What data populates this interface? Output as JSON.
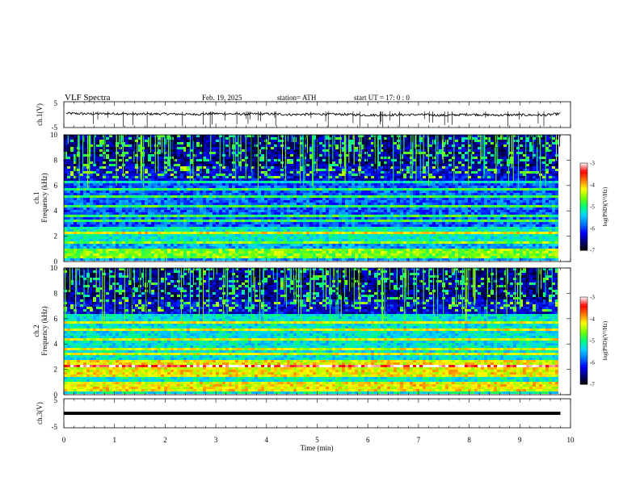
{
  "header": {
    "title": "VLF  Spectra",
    "date": "Feb. 19, 2025",
    "station": "station= ATH",
    "start": "start  UT  =   17: 0  : 0"
  },
  "chart_data": {
    "type": "heatmap",
    "xlabel": "Time  (min)",
    "xlim": [
      0,
      10
    ],
    "xticks": [
      "0",
      "1",
      "2",
      "3",
      "4",
      "5",
      "6",
      "7",
      "8",
      "9",
      "10"
    ],
    "panels": [
      {
        "id": "ch1-voltage",
        "type": "line",
        "ylabel": "ch.1(V)",
        "ylim": [
          -5,
          5
        ],
        "yticks": [
          "5",
          "-5"
        ],
        "series": [
          {
            "x": [
              0.05,
              0.5,
              1.0,
              1.5,
              2.0,
              2.5,
              3.0,
              3.5,
              4.0,
              4.5,
              5.0,
              5.5,
              6.0,
              6.5,
              7.0,
              7.5,
              8.0,
              8.5,
              9.0,
              9.5,
              9.8
            ],
            "values": [
              0.5,
              0.3,
              0.4,
              0.2,
              0.3,
              0.1,
              0.4,
              0.2,
              0.3,
              0.0,
              0.2,
              0.1,
              -0.2,
              -0.1,
              0.0,
              -0.3,
              0.1,
              -0.2,
              -0.1,
              -0.2,
              0.4
            ]
          }
        ]
      },
      {
        "id": "ch1-spectrogram",
        "type": "heatmap",
        "ylabel_line1": "ch.1",
        "ylabel_line2": "Frequency  (kHz)",
        "ylim": [
          0,
          10
        ],
        "yticks": [
          "0",
          "2",
          "4",
          "6",
          "8",
          "10"
        ],
        "colorbar": {
          "label": "log(PSD)(V²/Hz)",
          "ticks": [
            "-3",
            "-4",
            "-5",
            "-6",
            "-7"
          ],
          "range": [
            -7,
            -3
          ]
        }
      },
      {
        "id": "ch2-spectrogram",
        "type": "heatmap",
        "ylabel_line1": "ch.2",
        "ylabel_line2": "Frequency  (kHz)",
        "ylim": [
          0,
          10
        ],
        "yticks": [
          "0",
          "2",
          "4",
          "6",
          "8",
          "10"
        ],
        "colorbar": {
          "label": "log(PSD)(V²/Hz)",
          "ticks": [
            "-3",
            "-4",
            "-5",
            "-6",
            "-7"
          ],
          "range": [
            -7,
            -3
          ]
        }
      },
      {
        "id": "ch3-voltage",
        "type": "line",
        "ylabel": "ch.3(V)",
        "ylim": [
          -5,
          5
        ],
        "yticks": [
          "5",
          "-5"
        ],
        "series": [
          {
            "x": [
              0.0,
              9.8
            ],
            "values": [
              0.0,
              0.0
            ]
          }
        ]
      }
    ],
    "colormap": [
      "#000000",
      "#00007a",
      "#0000ff",
      "#0078ff",
      "#00d2ff",
      "#00ff78",
      "#78ff00",
      "#ffff00",
      "#ff7800",
      "#ff0000",
      "#ffffff"
    ]
  }
}
